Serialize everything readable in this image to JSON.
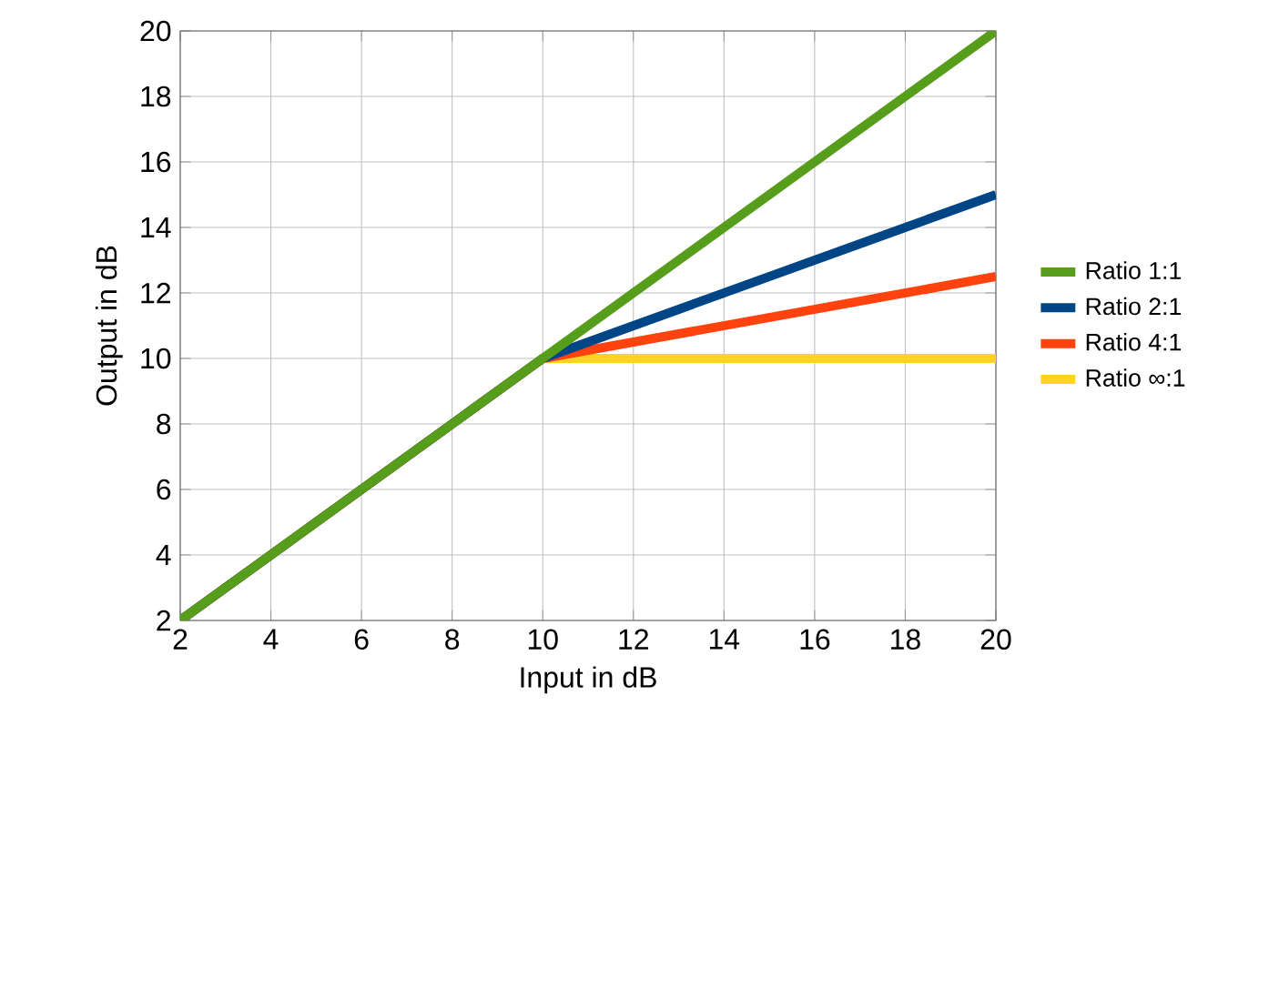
{
  "chart_data": {
    "type": "line",
    "xlabel": "Input in dB",
    "ylabel": "Output in dB",
    "xlim": [
      2,
      20
    ],
    "ylim": [
      2,
      20
    ],
    "xticks": [
      2,
      4,
      6,
      8,
      10,
      12,
      14,
      16,
      18,
      20
    ],
    "yticks": [
      2,
      4,
      6,
      8,
      10,
      12,
      14,
      16,
      18,
      20
    ],
    "grid": true,
    "legend": "right",
    "series": [
      {
        "name": "Ratio 1:1",
        "color": "#579d1c",
        "x": [
          2,
          20
        ],
        "values": [
          2,
          20
        ]
      },
      {
        "name": "Ratio 2:1",
        "color": "#004586",
        "x": [
          2,
          10,
          20
        ],
        "values": [
          2,
          10,
          15
        ]
      },
      {
        "name": "Ratio 4:1",
        "color": "#ff420e",
        "x": [
          2,
          10,
          20
        ],
        "values": [
          2,
          10,
          12.5
        ]
      },
      {
        "name": "Ratio ∞:1",
        "color": "#ffd320",
        "x": [
          2,
          10,
          20
        ],
        "values": [
          2,
          10,
          10
        ]
      }
    ]
  }
}
